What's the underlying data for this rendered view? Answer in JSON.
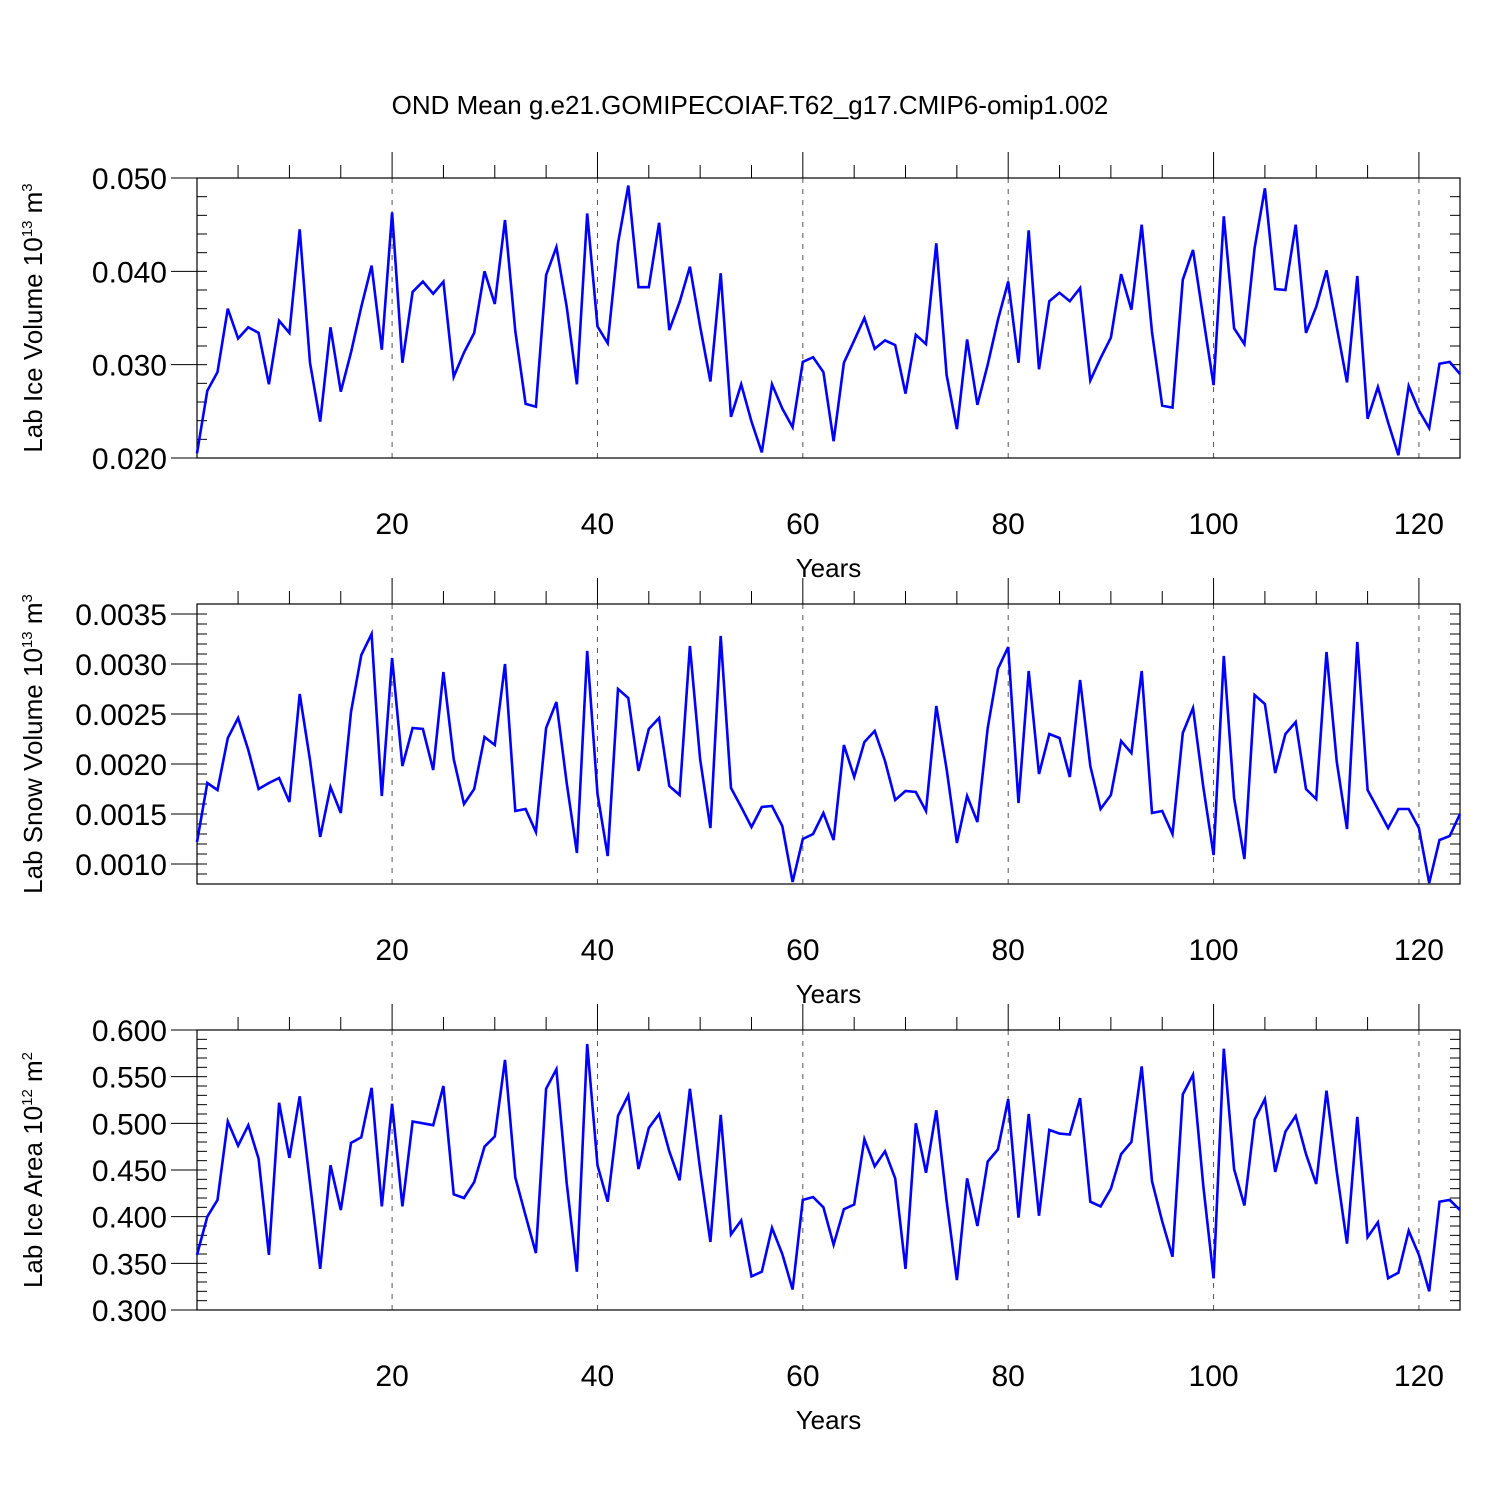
{
  "title": "OND Mean g.e21.GOMIPECOIAF.T62_g17.CMIP6-omip1.002",
  "colors": {
    "line": "#0000ff",
    "axis": "#000000",
    "grid": "#555555"
  },
  "chart_data": [
    {
      "type": "line",
      "ylabel": "Lab Ice Volume 10",
      "ylabel_exp": "13",
      "ylabel_unit": " m",
      "ylabel_unit_exp": "3",
      "xlabel": "Years",
      "xlim": [
        1,
        124
      ],
      "ylim": [
        0.02,
        0.05
      ],
      "yticks": [
        0.02,
        0.03,
        0.04,
        0.05
      ],
      "yticklabels": [
        "0.020",
        "0.030",
        "0.040",
        "0.050"
      ],
      "xticks": [
        20,
        40,
        60,
        80,
        100,
        120
      ],
      "xticklabels": [
        "20",
        "40",
        "60",
        "80",
        "100",
        "120"
      ],
      "grid": "vertical dashed at major x ticks",
      "series": [
        {
          "x_start": 1,
          "values": [
            0.0205,
            0.0272,
            0.0292,
            0.036,
            0.0328,
            0.034,
            0.0334,
            0.0279,
            0.0347,
            0.0334,
            0.0445,
            0.0302,
            0.0239,
            0.034,
            0.0271,
            0.0313,
            0.0362,
            0.0406,
            0.0316,
            0.0463,
            0.0302,
            0.0378,
            0.0389,
            0.0376,
            0.0389,
            0.0287,
            0.0313,
            0.0334,
            0.04,
            0.0365,
            0.0455,
            0.0336,
            0.0258,
            0.0255,
            0.0396,
            0.0426,
            0.0362,
            0.0279,
            0.0462,
            0.0341,
            0.0323,
            0.043,
            0.0492,
            0.0383,
            0.0383,
            0.0452,
            0.0337,
            0.0367,
            0.0405,
            0.0341,
            0.0282,
            0.0398,
            0.0244,
            0.0279,
            0.0239,
            0.0206,
            0.0279,
            0.0253,
            0.0233,
            0.0303,
            0.0308,
            0.0292,
            0.0218,
            0.0302,
            0.0326,
            0.035,
            0.0317,
            0.0326,
            0.0321,
            0.0269,
            0.0332,
            0.0322,
            0.043,
            0.0289,
            0.0231,
            0.0327,
            0.0257,
            0.03,
            0.0348,
            0.0389,
            0.0302,
            0.0444,
            0.0295,
            0.0368,
            0.0377,
            0.0368,
            0.0382,
            0.0283,
            0.0307,
            0.0329,
            0.0397,
            0.0359,
            0.045,
            0.0335,
            0.0256,
            0.0254,
            0.0391,
            0.0423,
            0.035,
            0.0278,
            0.0459,
            0.0339,
            0.0322,
            0.0425,
            0.0489,
            0.0381,
            0.038,
            0.045,
            0.0334,
            0.0362,
            0.0401,
            0.034,
            0.0281,
            0.0395,
            0.0242,
            0.0276,
            0.0238,
            0.0203,
            0.0277,
            0.0251,
            0.0232,
            0.0301,
            0.0303,
            0.029
          ]
        }
      ]
    },
    {
      "type": "line",
      "ylabel": "Lab Snow Volume 10",
      "ylabel_exp": "13",
      "ylabel_unit": " m",
      "ylabel_unit_exp": "3",
      "xlabel": "Years",
      "xlim": [
        1,
        124
      ],
      "ylim": [
        0.0008,
        0.0036
      ],
      "yticks": [
        0.001,
        0.0015,
        0.002,
        0.0025,
        0.003,
        0.0035
      ],
      "yticklabels": [
        "0.0010",
        "0.0015",
        "0.0020",
        "0.0025",
        "0.0030",
        "0.0035"
      ],
      "xticks": [
        20,
        40,
        60,
        80,
        100,
        120
      ],
      "xticklabels": [
        "20",
        "40",
        "60",
        "80",
        "100",
        "120"
      ],
      "grid": "vertical dashed at major x ticks",
      "series": [
        {
          "x_start": 1,
          "values": [
            0.00122,
            0.00181,
            0.00174,
            0.00226,
            0.00246,
            0.00214,
            0.00175,
            0.00181,
            0.00186,
            0.00162,
            0.0027,
            0.00204,
            0.00127,
            0.00177,
            0.00151,
            0.00252,
            0.00309,
            0.0033,
            0.00168,
            0.00306,
            0.00198,
            0.00236,
            0.00235,
            0.00194,
            0.00292,
            0.00205,
            0.0016,
            0.00175,
            0.00227,
            0.00219,
            0.003,
            0.00153,
            0.00155,
            0.00132,
            0.00236,
            0.00262,
            0.00181,
            0.00111,
            0.00313,
            0.0017,
            0.00108,
            0.00275,
            0.00266,
            0.00193,
            0.00235,
            0.00246,
            0.00178,
            0.00169,
            0.00318,
            0.00205,
            0.00136,
            0.00328,
            0.00176,
            0.00157,
            0.00137,
            0.00157,
            0.00158,
            0.00138,
            0.00082,
            0.00125,
            0.0013,
            0.00151,
            0.00124,
            0.00219,
            0.00187,
            0.00222,
            0.00233,
            0.00203,
            0.00164,
            0.00173,
            0.00172,
            0.00153,
            0.00258,
            0.00195,
            0.00121,
            0.00168,
            0.00142,
            0.00236,
            0.00295,
            0.00317,
            0.00161,
            0.00293,
            0.0019,
            0.0023,
            0.00226,
            0.00187,
            0.00284,
            0.00198,
            0.00155,
            0.00169,
            0.00223,
            0.00211,
            0.00293,
            0.00151,
            0.00153,
            0.0013,
            0.00231,
            0.00256,
            0.00177,
            0.00109,
            0.00308,
            0.00166,
            0.00105,
            0.00269,
            0.0026,
            0.00191,
            0.0023,
            0.00242,
            0.00175,
            0.00165,
            0.00312,
            0.00202,
            0.00135,
            0.00322,
            0.00174,
            0.00155,
            0.00136,
            0.00155,
            0.00155,
            0.00136,
            0.00081,
            0.00124,
            0.00128,
            0.0015
          ]
        }
      ]
    },
    {
      "type": "line",
      "ylabel": "Lab Ice Area 10",
      "ylabel_exp": "12",
      "ylabel_unit": " m",
      "ylabel_unit_exp": "2",
      "xlabel": "Years",
      "xlim": [
        1,
        124
      ],
      "ylim": [
        0.3,
        0.6
      ],
      "yticks": [
        0.3,
        0.35,
        0.4,
        0.45,
        0.5,
        0.55,
        0.6
      ],
      "yticklabels": [
        "0.300",
        "0.350",
        "0.400",
        "0.450",
        "0.500",
        "0.550",
        "0.600"
      ],
      "xticks": [
        20,
        40,
        60,
        80,
        100,
        120
      ],
      "xticklabels": [
        "20",
        "40",
        "60",
        "80",
        "100",
        "120"
      ],
      "grid": "vertical dashed at major x ticks",
      "series": [
        {
          "x_start": 1,
          "values": [
            0.359,
            0.4,
            0.418,
            0.502,
            0.476,
            0.498,
            0.462,
            0.359,
            0.522,
            0.463,
            0.529,
            0.436,
            0.344,
            0.455,
            0.407,
            0.479,
            0.485,
            0.538,
            0.411,
            0.521,
            0.411,
            0.502,
            0.5,
            0.498,
            0.54,
            0.424,
            0.42,
            0.437,
            0.475,
            0.486,
            0.568,
            0.442,
            0.401,
            0.361,
            0.537,
            0.558,
            0.436,
            0.341,
            0.585,
            0.455,
            0.416,
            0.508,
            0.53,
            0.451,
            0.495,
            0.51,
            0.47,
            0.439,
            0.537,
            0.451,
            0.373,
            0.509,
            0.381,
            0.396,
            0.336,
            0.341,
            0.388,
            0.36,
            0.322,
            0.418,
            0.421,
            0.41,
            0.37,
            0.408,
            0.413,
            0.483,
            0.454,
            0.47,
            0.441,
            0.344,
            0.5,
            0.447,
            0.514,
            0.417,
            0.332,
            0.441,
            0.39,
            0.459,
            0.472,
            0.526,
            0.399,
            0.51,
            0.401,
            0.493,
            0.489,
            0.488,
            0.527,
            0.416,
            0.411,
            0.43,
            0.467,
            0.48,
            0.561,
            0.438,
            0.395,
            0.357,
            0.531,
            0.552,
            0.433,
            0.334,
            0.58,
            0.451,
            0.412,
            0.504,
            0.526,
            0.448,
            0.491,
            0.508,
            0.467,
            0.435,
            0.535,
            0.448,
            0.371,
            0.507,
            0.378,
            0.394,
            0.334,
            0.34,
            0.385,
            0.359,
            0.32,
            0.416,
            0.418,
            0.407
          ]
        }
      ]
    }
  ]
}
